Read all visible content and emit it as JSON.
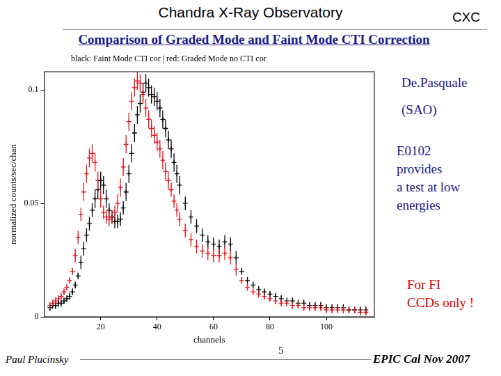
{
  "slide": {
    "header": "Chandra X-Ray Observatory",
    "header_right": "CXC",
    "title": "Comparison of Graded Mode and Faint Mode CTI Correction",
    "annotations": [
      {
        "lines": [
          "De.Pasquale"
        ],
        "color": "#1a1a8c"
      },
      {
        "lines": [
          "(SAO)"
        ],
        "color": "#1a1a8c"
      },
      {
        "lines": [
          "E0102",
          "provides",
          "a test at low",
          "energies"
        ],
        "color": "#1a1a8c"
      },
      {
        "lines": [
          "For FI",
          "CCDs only !"
        ],
        "color": "#e00000"
      }
    ],
    "footer_left": "Paul Plucinsky",
    "footer_center": "5",
    "footer_right": "EPIC Cal Nov 2007"
  },
  "chart_data": {
    "type": "scatter",
    "subtitle": "black: Faint Mode CTI cor | red: Graded Mode no CTI cor",
    "x_label": "channels",
    "y_label": "normalized counts/sec/chan",
    "x": [
      2,
      3,
      4,
      5,
      6,
      7,
      8,
      9,
      10,
      11,
      12,
      13,
      14,
      15,
      16,
      17,
      18,
      19,
      20,
      21,
      22,
      23,
      24,
      25,
      26,
      27,
      28,
      29,
      30,
      31,
      32,
      33,
      34,
      35,
      36,
      37,
      38,
      39,
      40,
      41,
      42,
      43,
      44,
      45,
      46,
      47,
      48,
      50,
      52,
      54,
      56,
      58,
      60,
      62,
      64,
      66,
      68,
      70,
      72,
      74,
      76,
      78,
      80,
      82,
      84,
      86,
      88,
      90,
      92,
      94,
      96,
      98,
      100,
      102,
      104,
      106,
      108,
      110,
      112,
      114
    ],
    "series": [
      {
        "name": "Faint Mode CTI cor",
        "color": "#000000",
        "marker": "plus",
        "values": [
          0.004,
          0.005,
          0.005,
          0.006,
          0.006,
          0.007,
          0.008,
          0.009,
          0.011,
          0.014,
          0.018,
          0.024,
          0.03,
          0.036,
          0.041,
          0.047,
          0.052,
          0.056,
          0.06,
          0.058,
          0.052,
          0.047,
          0.044,
          0.042,
          0.042,
          0.043,
          0.048,
          0.055,
          0.063,
          0.072,
          0.081,
          0.089,
          0.094,
          0.099,
          0.103,
          0.101,
          0.098,
          0.097,
          0.095,
          0.092,
          0.087,
          0.083,
          0.078,
          0.074,
          0.068,
          0.063,
          0.058,
          0.05,
          0.044,
          0.04,
          0.036,
          0.033,
          0.032,
          0.031,
          0.033,
          0.032,
          0.026,
          0.02,
          0.016,
          0.014,
          0.012,
          0.011,
          0.01,
          0.009,
          0.008,
          0.007,
          0.007,
          0.006,
          0.006,
          0.005,
          0.005,
          0.005,
          0.004,
          0.004,
          0.004,
          0.004,
          0.003,
          0.003,
          0.003,
          0.003
        ],
        "errors": [
          0.0015,
          0.0015,
          0.0015,
          0.0015,
          0.0015,
          0.0015,
          0.0015,
          0.0015,
          0.0015,
          0.0015,
          0.0015,
          0.003,
          0.003,
          0.003,
          0.003,
          0.003,
          0.004,
          0.004,
          0.004,
          0.004,
          0.004,
          0.003,
          0.003,
          0.003,
          0.003,
          0.003,
          0.003,
          0.004,
          0.004,
          0.004,
          0.004,
          0.004,
          0.004,
          0.004,
          0.004,
          0.004,
          0.004,
          0.004,
          0.004,
          0.004,
          0.004,
          0.004,
          0.004,
          0.004,
          0.004,
          0.004,
          0.004,
          0.003,
          0.003,
          0.003,
          0.003,
          0.003,
          0.003,
          0.003,
          0.003,
          0.003,
          0.003,
          0.0015,
          0.0015,
          0.0015,
          0.0015,
          0.0015,
          0.0015,
          0.0015,
          0.0015,
          0.0015,
          0.0015,
          0.0015,
          0.0015,
          0.0015,
          0.0015,
          0.0015,
          0.0015,
          0.0015,
          0.0015,
          0.0015,
          0.0015,
          0.0015,
          0.0015,
          0.0015
        ]
      },
      {
        "name": "Graded Mode no CTI cor",
        "color": "#e8141e",
        "marker": "plus",
        "values": [
          0.005,
          0.006,
          0.007,
          0.008,
          0.009,
          0.011,
          0.013,
          0.016,
          0.02,
          0.027,
          0.035,
          0.045,
          0.055,
          0.063,
          0.07,
          0.072,
          0.068,
          0.06,
          0.052,
          0.046,
          0.044,
          0.043,
          0.044,
          0.046,
          0.05,
          0.057,
          0.066,
          0.076,
          0.086,
          0.095,
          0.101,
          0.104,
          0.103,
          0.098,
          0.092,
          0.087,
          0.083,
          0.08,
          0.077,
          0.074,
          0.069,
          0.064,
          0.06,
          0.056,
          0.051,
          0.047,
          0.043,
          0.038,
          0.034,
          0.031,
          0.029,
          0.028,
          0.027,
          0.027,
          0.028,
          0.026,
          0.021,
          0.016,
          0.013,
          0.011,
          0.01,
          0.009,
          0.008,
          0.007,
          0.006,
          0.006,
          0.005,
          0.005,
          0.004,
          0.004,
          0.004,
          0.004,
          0.003,
          0.003,
          0.003,
          0.003,
          0.003,
          0.003,
          0.002,
          0.002
        ],
        "errors": [
          0.0015,
          0.0015,
          0.0015,
          0.0015,
          0.0015,
          0.0015,
          0.0015,
          0.0015,
          0.0015,
          0.003,
          0.003,
          0.003,
          0.004,
          0.004,
          0.004,
          0.004,
          0.004,
          0.004,
          0.004,
          0.003,
          0.003,
          0.003,
          0.003,
          0.003,
          0.004,
          0.004,
          0.004,
          0.004,
          0.004,
          0.004,
          0.004,
          0.004,
          0.004,
          0.004,
          0.004,
          0.004,
          0.004,
          0.004,
          0.004,
          0.004,
          0.004,
          0.004,
          0.004,
          0.003,
          0.003,
          0.003,
          0.003,
          0.003,
          0.003,
          0.003,
          0.003,
          0.003,
          0.003,
          0.003,
          0.003,
          0.003,
          0.003,
          0.0015,
          0.0015,
          0.0015,
          0.0015,
          0.0015,
          0.0015,
          0.0015,
          0.0015,
          0.0015,
          0.0015,
          0.0015,
          0.0015,
          0.0015,
          0.0015,
          0.0015,
          0.0015,
          0.0015,
          0.0015,
          0.0015,
          0.0015,
          0.0015,
          0.0015,
          0.0015
        ]
      }
    ],
    "xlim": [
      0,
      117
    ],
    "xticks": [
      20,
      40,
      60,
      80,
      100
    ],
    "ylim": [
      0,
      0.108
    ],
    "yticks": [
      0,
      0.05,
      0.1
    ],
    "grid": false
  }
}
